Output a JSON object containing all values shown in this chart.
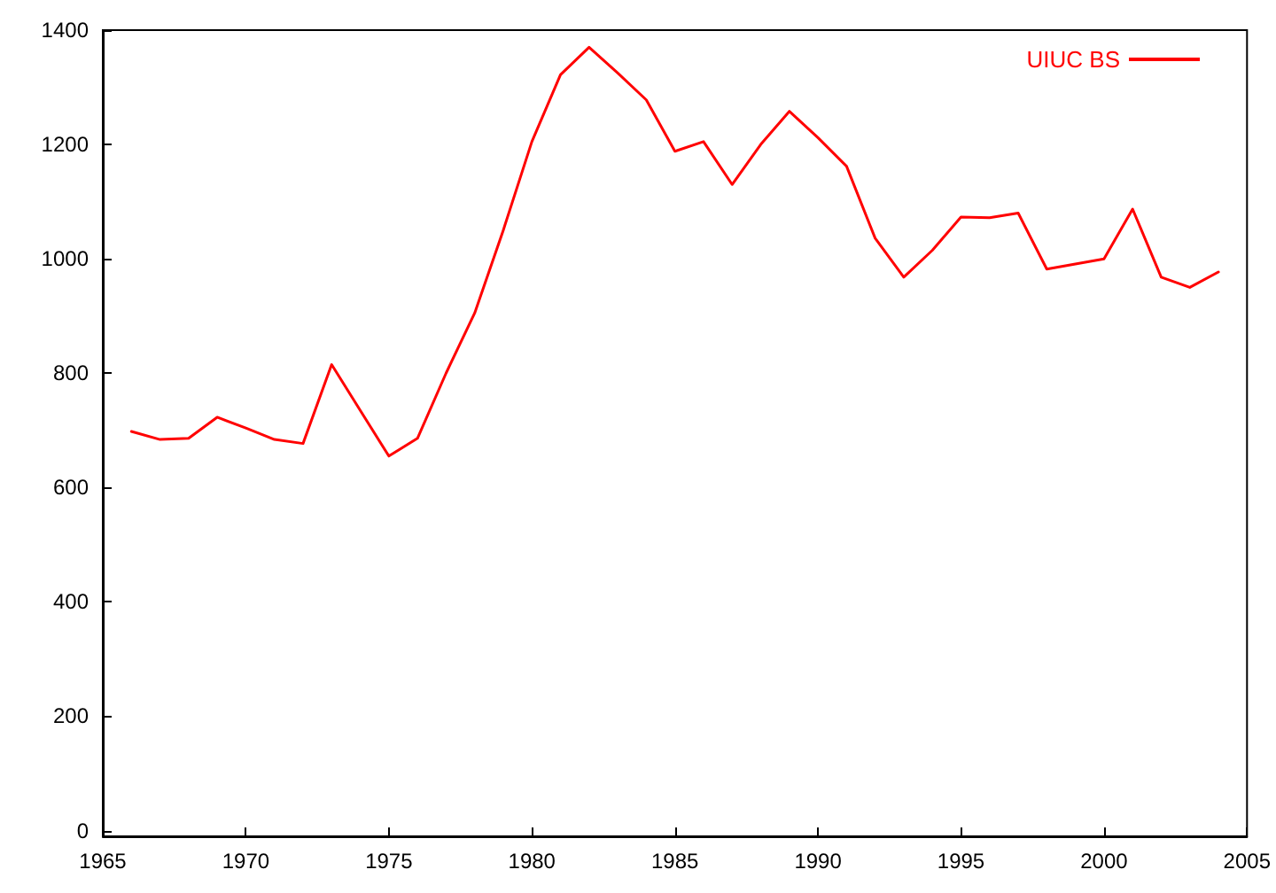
{
  "chart_data": {
    "type": "line",
    "x": [
      1966,
      1967,
      1968,
      1969,
      1970,
      1971,
      1972,
      1973,
      1974,
      1975,
      1976,
      1977,
      1978,
      1979,
      1980,
      1981,
      1982,
      1983,
      1984,
      1985,
      1986,
      1987,
      1988,
      1989,
      1990,
      1991,
      1992,
      1993,
      1994,
      1995,
      1996,
      1997,
      1998,
      1999,
      2000,
      2001,
      2002,
      2003,
      2004
    ],
    "series": [
      {
        "name": "UIUC BS",
        "color": "#ff0000",
        "values": [
          698,
          684,
          686,
          723,
          704,
          684,
          677,
          815,
          735,
          655,
          686,
          800,
          905,
          1050,
          1205,
          1322,
          1370,
          1325,
          1278,
          1188,
          1205,
          1130,
          1200,
          1258,
          1212,
          1162,
          1036,
          968,
          1015,
          1073,
          1072,
          1080,
          982,
          991,
          1000,
          1087,
          968,
          950,
          977
        ]
      }
    ],
    "xlim": [
      1965,
      2005
    ],
    "xticks": [
      1965,
      1970,
      1975,
      1980,
      1985,
      1990,
      1995,
      2000,
      2005
    ],
    "ylim": [
      -10,
      1400
    ],
    "yticks": [
      0,
      200,
      400,
      600,
      800,
      1000,
      1200,
      1400
    ],
    "grid": false,
    "legend": "top right",
    "marker": "none",
    "line_style": "solid"
  }
}
